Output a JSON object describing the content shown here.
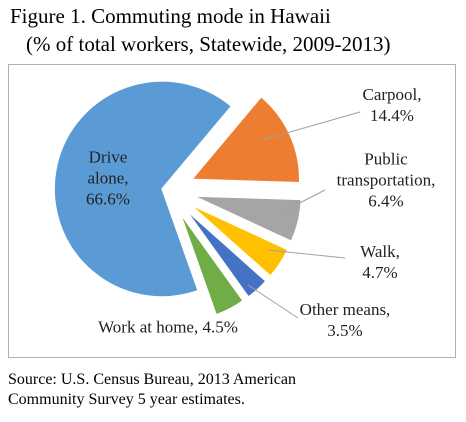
{
  "chart_data": {
    "type": "pie",
    "title": "Figure 1. Commuting mode in Hawaii",
    "subtitle": "(% of total workers, Statewide, 2009-2013)",
    "categories": [
      "Carpool,",
      "Public transportation,",
      "Walk,",
      "Other means,",
      "Work at home,",
      "Drive alone,"
    ],
    "values": [
      14.4,
      6.4,
      4.7,
      3.5,
      4.5,
      66.6
    ],
    "value_labels": [
      "14.4%",
      "6.4%",
      "4.7%",
      "3.5%",
      "4.5%",
      "66.6%"
    ],
    "colors": [
      "#ed7d31",
      "#a5a5a5",
      "#ffc000",
      "#4472c4",
      "#70ad47",
      "#5b9bd5"
    ],
    "source": "Source: U.S. Census Bureau, 2013 American Community Survey 5 year estimates."
  }
}
